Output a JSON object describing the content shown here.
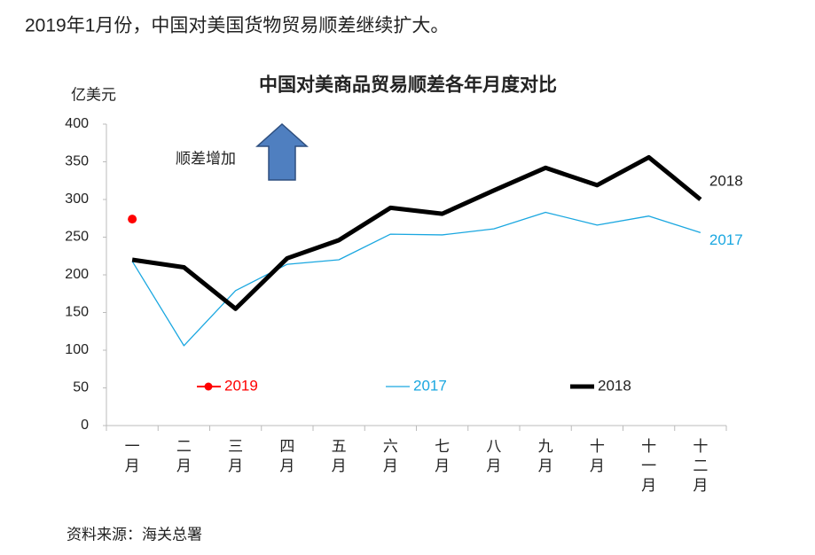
{
  "headline": "2019年1月份，中国对美国货物贸易顺差继续扩大。",
  "source": "资料来源：海关总署",
  "chart_data": {
    "type": "line",
    "title": "中国对美商品贸易顺差各年月度对比",
    "y_label": "亿美元",
    "annotation": "顺差增加",
    "categories": [
      "一月",
      "二月",
      "三月",
      "四月",
      "五月",
      "六月",
      "七月",
      "八月",
      "九月",
      "十月",
      "十一月",
      "十二月"
    ],
    "series": [
      {
        "name": "2019",
        "color": "#ff0000",
        "values": [
          274,
          null,
          null,
          null,
          null,
          null,
          null,
          null,
          null,
          null,
          null,
          null
        ]
      },
      {
        "name": "2017",
        "color": "#1aa7e0",
        "values": [
          218,
          106,
          179,
          214,
          220,
          254,
          253,
          261,
          283,
          266,
          278,
          256
        ]
      },
      {
        "name": "2018",
        "color": "#000000",
        "values": [
          220,
          210,
          155,
          222,
          246,
          289,
          281,
          312,
          342,
          319,
          356,
          300
        ]
      }
    ],
    "ylim": [
      0,
      400
    ],
    "yticks": [
      0,
      50,
      100,
      150,
      200,
      250,
      300,
      350,
      400
    ],
    "grid": false,
    "legend": "bottom"
  }
}
